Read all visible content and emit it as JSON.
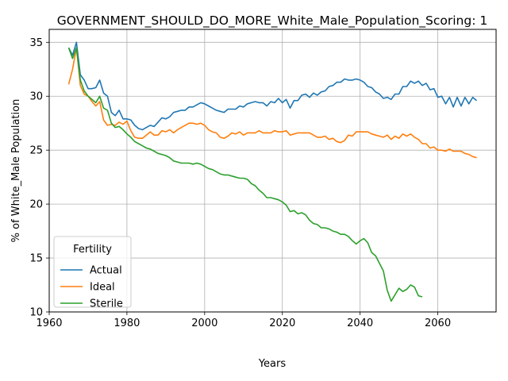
{
  "chart_data": {
    "type": "line",
    "title": "GOVERNMENT_SHOULD_DO_MORE_White_Male_Population_Scoring: 1",
    "xlabel": "Years",
    "ylabel": "% of White_Male Population",
    "xlim": [
      1960,
      2075
    ],
    "ylim": [
      10,
      36.2
    ],
    "xticks": [
      1960,
      1980,
      2000,
      2020,
      2040,
      2060
    ],
    "yticks": [
      10,
      15,
      20,
      25,
      30,
      35
    ],
    "grid": true,
    "legend": {
      "title": "Fertility",
      "position": "lower-left"
    },
    "series": [
      {
        "name": "Actual",
        "color": "#1f77b4",
        "points": [
          [
            1965,
            34.5
          ],
          [
            1966,
            33.8
          ],
          [
            1967,
            35.0
          ],
          [
            1968,
            32.0
          ],
          [
            1969,
            31.5
          ],
          [
            1970,
            30.7
          ],
          [
            1971,
            30.7
          ],
          [
            1972,
            30.8
          ],
          [
            1973,
            31.5
          ],
          [
            1974,
            30.3
          ],
          [
            1975,
            30.0
          ],
          [
            1976,
            28.5
          ],
          [
            1977,
            28.2
          ],
          [
            1978,
            28.7
          ],
          [
            1979,
            27.9
          ],
          [
            1980,
            27.9
          ],
          [
            1981,
            27.8
          ],
          [
            1982,
            27.3
          ],
          [
            1983,
            27.0
          ],
          [
            1984,
            26.9
          ],
          [
            1985,
            27.1
          ],
          [
            1986,
            27.3
          ],
          [
            1987,
            27.2
          ],
          [
            1988,
            27.6
          ],
          [
            1989,
            28.0
          ],
          [
            1990,
            27.9
          ],
          [
            1991,
            28.1
          ],
          [
            1992,
            28.5
          ],
          [
            1993,
            28.6
          ],
          [
            1994,
            28.7
          ],
          [
            1995,
            28.7
          ],
          [
            1996,
            29.0
          ],
          [
            1997,
            29.0
          ],
          [
            1998,
            29.2
          ],
          [
            1999,
            29.4
          ],
          [
            2000,
            29.3
          ],
          [
            2001,
            29.1
          ],
          [
            2002,
            28.9
          ],
          [
            2003,
            28.7
          ],
          [
            2004,
            28.6
          ],
          [
            2005,
            28.5
          ],
          [
            2006,
            28.8
          ],
          [
            2007,
            28.8
          ],
          [
            2008,
            28.8
          ],
          [
            2009,
            29.1
          ],
          [
            2010,
            29.0
          ],
          [
            2011,
            29.3
          ],
          [
            2012,
            29.4
          ],
          [
            2013,
            29.5
          ],
          [
            2014,
            29.4
          ],
          [
            2015,
            29.4
          ],
          [
            2016,
            29.1
          ],
          [
            2017,
            29.5
          ],
          [
            2018,
            29.4
          ],
          [
            2019,
            29.8
          ],
          [
            2020,
            29.4
          ],
          [
            2021,
            29.7
          ],
          [
            2022,
            28.9
          ],
          [
            2023,
            29.6
          ],
          [
            2024,
            29.6
          ],
          [
            2025,
            30.1
          ],
          [
            2026,
            30.2
          ],
          [
            2027,
            29.9
          ],
          [
            2028,
            30.3
          ],
          [
            2029,
            30.1
          ],
          [
            2030,
            30.4
          ],
          [
            2031,
            30.5
          ],
          [
            2032,
            30.9
          ],
          [
            2033,
            31.0
          ],
          [
            2034,
            31.3
          ],
          [
            2035,
            31.3
          ],
          [
            2036,
            31.6
          ],
          [
            2037,
            31.5
          ],
          [
            2038,
            31.5
          ],
          [
            2039,
            31.6
          ],
          [
            2040,
            31.5
          ],
          [
            2041,
            31.3
          ],
          [
            2042,
            30.9
          ],
          [
            2043,
            30.8
          ],
          [
            2044,
            30.4
          ],
          [
            2045,
            30.2
          ],
          [
            2046,
            29.8
          ],
          [
            2047,
            29.9
          ],
          [
            2048,
            29.7
          ],
          [
            2049,
            30.2
          ],
          [
            2050,
            30.2
          ],
          [
            2051,
            30.9
          ],
          [
            2052,
            30.9
          ],
          [
            2053,
            31.4
          ],
          [
            2054,
            31.2
          ],
          [
            2055,
            31.4
          ],
          [
            2056,
            31.0
          ],
          [
            2057,
            31.2
          ],
          [
            2058,
            30.6
          ],
          [
            2059,
            30.7
          ],
          [
            2060,
            29.9
          ],
          [
            2061,
            30.0
          ],
          [
            2062,
            29.3
          ],
          [
            2063,
            29.9
          ],
          [
            2064,
            29.0
          ],
          [
            2065,
            29.9
          ],
          [
            2066,
            29.1
          ],
          [
            2067,
            29.9
          ],
          [
            2068,
            29.3
          ],
          [
            2069,
            29.9
          ],
          [
            2070,
            29.6
          ]
        ]
      },
      {
        "name": "Ideal",
        "color": "#ff7f0e",
        "points": [
          [
            1965,
            31.1
          ],
          [
            1966,
            32.5
          ],
          [
            1967,
            34.5
          ],
          [
            1968,
            31.0
          ],
          [
            1969,
            30.2
          ],
          [
            1970,
            30.0
          ],
          [
            1971,
            29.5
          ],
          [
            1972,
            29.1
          ],
          [
            1973,
            29.5
          ],
          [
            1974,
            27.8
          ],
          [
            1975,
            27.3
          ],
          [
            1976,
            27.4
          ],
          [
            1977,
            27.3
          ],
          [
            1978,
            27.6
          ],
          [
            1979,
            27.4
          ],
          [
            1980,
            27.7
          ],
          [
            1981,
            26.8
          ],
          [
            1982,
            26.2
          ],
          [
            1983,
            26.1
          ],
          [
            1984,
            26.1
          ],
          [
            1985,
            26.4
          ],
          [
            1986,
            26.7
          ],
          [
            1987,
            26.4
          ],
          [
            1988,
            26.4
          ],
          [
            1989,
            26.8
          ],
          [
            1990,
            26.7
          ],
          [
            1991,
            26.9
          ],
          [
            1992,
            26.6
          ],
          [
            1993,
            26.9
          ],
          [
            1994,
            27.1
          ],
          [
            1995,
            27.3
          ],
          [
            1996,
            27.5
          ],
          [
            1997,
            27.5
          ],
          [
            1998,
            27.4
          ],
          [
            1999,
            27.5
          ],
          [
            2000,
            27.3
          ],
          [
            2001,
            26.9
          ],
          [
            2002,
            26.7
          ],
          [
            2003,
            26.6
          ],
          [
            2004,
            26.2
          ],
          [
            2005,
            26.1
          ],
          [
            2006,
            26.3
          ],
          [
            2007,
            26.6
          ],
          [
            2008,
            26.5
          ],
          [
            2009,
            26.7
          ],
          [
            2010,
            26.4
          ],
          [
            2011,
            26.6
          ],
          [
            2012,
            26.6
          ],
          [
            2013,
            26.6
          ],
          [
            2014,
            26.8
          ],
          [
            2015,
            26.6
          ],
          [
            2016,
            26.6
          ],
          [
            2017,
            26.6
          ],
          [
            2018,
            26.8
          ],
          [
            2019,
            26.7
          ],
          [
            2020,
            26.7
          ],
          [
            2021,
            26.8
          ],
          [
            2022,
            26.4
          ],
          [
            2023,
            26.5
          ],
          [
            2024,
            26.6
          ],
          [
            2025,
            26.6
          ],
          [
            2026,
            26.6
          ],
          [
            2027,
            26.6
          ],
          [
            2028,
            26.4
          ],
          [
            2029,
            26.2
          ],
          [
            2030,
            26.2
          ],
          [
            2031,
            26.3
          ],
          [
            2032,
            26.0
          ],
          [
            2033,
            26.1
          ],
          [
            2034,
            25.8
          ],
          [
            2035,
            25.7
          ],
          [
            2036,
            25.9
          ],
          [
            2037,
            26.4
          ],
          [
            2038,
            26.3
          ],
          [
            2039,
            26.7
          ],
          [
            2040,
            26.7
          ],
          [
            2041,
            26.7
          ],
          [
            2042,
            26.7
          ],
          [
            2043,
            26.5
          ],
          [
            2044,
            26.4
          ],
          [
            2045,
            26.3
          ],
          [
            2046,
            26.2
          ],
          [
            2047,
            26.4
          ],
          [
            2048,
            26.0
          ],
          [
            2049,
            26.3
          ],
          [
            2050,
            26.1
          ],
          [
            2051,
            26.5
          ],
          [
            2052,
            26.3
          ],
          [
            2053,
            26.5
          ],
          [
            2054,
            26.2
          ],
          [
            2055,
            26.0
          ],
          [
            2056,
            25.6
          ],
          [
            2057,
            25.6
          ],
          [
            2058,
            25.2
          ],
          [
            2059,
            25.3
          ],
          [
            2060,
            25.0
          ],
          [
            2061,
            25.0
          ],
          [
            2062,
            24.9
          ],
          [
            2063,
            25.1
          ],
          [
            2064,
            24.9
          ],
          [
            2065,
            24.9
          ],
          [
            2066,
            24.9
          ],
          [
            2067,
            24.7
          ],
          [
            2068,
            24.6
          ],
          [
            2069,
            24.4
          ],
          [
            2070,
            24.3
          ]
        ]
      },
      {
        "name": "Sterile",
        "color": "#2ca02c",
        "points": [
          [
            1965,
            34.5
          ],
          [
            1966,
            33.5
          ],
          [
            1967,
            34.5
          ],
          [
            1968,
            31.5
          ],
          [
            1969,
            30.5
          ],
          [
            1970,
            30.0
          ],
          [
            1971,
            29.7
          ],
          [
            1972,
            29.4
          ],
          [
            1973,
            30.0
          ],
          [
            1974,
            28.9
          ],
          [
            1975,
            28.7
          ],
          [
            1976,
            27.5
          ],
          [
            1977,
            27.1
          ],
          [
            1978,
            27.2
          ],
          [
            1979,
            26.9
          ],
          [
            1980,
            26.5
          ],
          [
            1981,
            26.2
          ],
          [
            1982,
            25.8
          ],
          [
            1983,
            25.6
          ],
          [
            1984,
            25.4
          ],
          [
            1985,
            25.2
          ],
          [
            1986,
            25.1
          ],
          [
            1987,
            24.9
          ],
          [
            1988,
            24.7
          ],
          [
            1989,
            24.6
          ],
          [
            1990,
            24.5
          ],
          [
            1991,
            24.3
          ],
          [
            1992,
            24.0
          ],
          [
            1993,
            23.9
          ],
          [
            1994,
            23.8
          ],
          [
            1995,
            23.8
          ],
          [
            1996,
            23.8
          ],
          [
            1997,
            23.7
          ],
          [
            1998,
            23.8
          ],
          [
            1999,
            23.7
          ],
          [
            2000,
            23.5
          ],
          [
            2001,
            23.3
          ],
          [
            2002,
            23.2
          ],
          [
            2003,
            23.0
          ],
          [
            2004,
            22.8
          ],
          [
            2005,
            22.7
          ],
          [
            2006,
            22.7
          ],
          [
            2007,
            22.6
          ],
          [
            2008,
            22.5
          ],
          [
            2009,
            22.4
          ],
          [
            2010,
            22.4
          ],
          [
            2011,
            22.3
          ],
          [
            2012,
            21.9
          ],
          [
            2013,
            21.7
          ],
          [
            2014,
            21.3
          ],
          [
            2015,
            21.0
          ],
          [
            2016,
            20.6
          ],
          [
            2017,
            20.6
          ],
          [
            2018,
            20.5
          ],
          [
            2019,
            20.4
          ],
          [
            2020,
            20.2
          ],
          [
            2021,
            19.9
          ],
          [
            2022,
            19.3
          ],
          [
            2023,
            19.4
          ],
          [
            2024,
            19.1
          ],
          [
            2025,
            19.2
          ],
          [
            2026,
            19.0
          ],
          [
            2027,
            18.5
          ],
          [
            2028,
            18.2
          ],
          [
            2029,
            18.1
          ],
          [
            2030,
            17.8
          ],
          [
            2031,
            17.8
          ],
          [
            2032,
            17.7
          ],
          [
            2033,
            17.5
          ],
          [
            2034,
            17.4
          ],
          [
            2035,
            17.2
          ],
          [
            2036,
            17.2
          ],
          [
            2037,
            17.0
          ],
          [
            2038,
            16.6
          ],
          [
            2039,
            16.3
          ],
          [
            2040,
            16.6
          ],
          [
            2041,
            16.8
          ],
          [
            2042,
            16.4
          ],
          [
            2043,
            15.5
          ],
          [
            2044,
            15.2
          ],
          [
            2045,
            14.5
          ],
          [
            2046,
            13.8
          ],
          [
            2047,
            12.0
          ],
          [
            2048,
            11.0
          ],
          [
            2049,
            11.6
          ],
          [
            2050,
            12.2
          ],
          [
            2051,
            11.9
          ],
          [
            2052,
            12.1
          ],
          [
            2053,
            12.5
          ],
          [
            2054,
            12.3
          ],
          [
            2055,
            11.5
          ],
          [
            2056,
            11.4
          ]
        ]
      }
    ]
  }
}
